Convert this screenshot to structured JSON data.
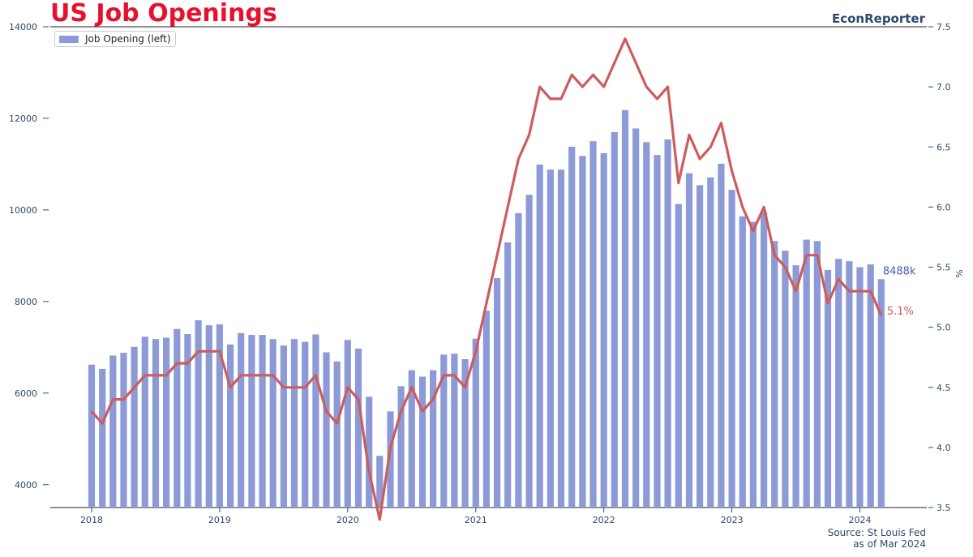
{
  "header": {
    "title": "US Job Openings",
    "brand": "EconReporter"
  },
  "legend": {
    "label": "Job Opening (left)"
  },
  "footer": {
    "source": "Source: St Louis Fed",
    "asof": "as of Mar 2024"
  },
  "annotations": {
    "bar_end": "8488k",
    "line_end": "5.1%"
  },
  "chart_data": {
    "type": "bar",
    "start": "2018-01",
    "frequency": "monthly",
    "x_ticks": [
      "2018",
      "2019",
      "2020",
      "2021",
      "2022",
      "2023",
      "2024"
    ],
    "ylim": [
      3500,
      14000
    ],
    "yticks": [
      4000,
      6000,
      8000,
      10000,
      12000,
      14000
    ],
    "y2lim": [
      3.5,
      7.5
    ],
    "y2ticks": [
      "3.5",
      "4.0",
      "4.5",
      "5.0",
      "5.5",
      "6.0",
      "6.5",
      "7.0",
      "7.5"
    ],
    "y2label": "%",
    "bar_color": "#8c9ad7",
    "line_color": "#cd5c5c",
    "series": [
      {
        "name": "Job Opening (left)",
        "type": "bar",
        "axis": "left",
        "values": [
          6620,
          6530,
          6820,
          6880,
          7010,
          7230,
          7180,
          7210,
          7400,
          7290,
          7590,
          7480,
          7500,
          7060,
          7310,
          7270,
          7270,
          7180,
          7040,
          7180,
          7120,
          7280,
          6890,
          6690,
          7160,
          6970,
          5920,
          4630,
          5600,
          6150,
          6500,
          6360,
          6500,
          6840,
          6860,
          6740,
          7190,
          7800,
          8510,
          9290,
          9930,
          10330,
          10990,
          10880,
          10880,
          11380,
          11180,
          11500,
          11240,
          11700,
          12180,
          11780,
          11480,
          11200,
          11540,
          10130,
          10800,
          10540,
          10710,
          11010,
          10440,
          9860,
          9740,
          9950,
          9320,
          9110,
          8790,
          9350,
          9320,
          8690,
          8930,
          8880,
          8750,
          8810,
          8488
        ]
      },
      {
        "type": "line",
        "axis": "right",
        "values": [
          4.3,
          4.2,
          4.4,
          4.4,
          4.5,
          4.6,
          4.6,
          4.6,
          4.7,
          4.7,
          4.8,
          4.8,
          4.8,
          4.5,
          4.6,
          4.6,
          4.6,
          4.6,
          4.5,
          4.5,
          4.5,
          4.6,
          4.3,
          4.2,
          4.5,
          4.4,
          3.8,
          3.4,
          4.0,
          4.3,
          4.5,
          4.3,
          4.4,
          4.6,
          4.6,
          4.5,
          4.8,
          5.2,
          5.6,
          6.0,
          6.4,
          6.6,
          7.0,
          6.9,
          6.9,
          7.1,
          7.0,
          7.1,
          7.0,
          7.2,
          7.4,
          7.2,
          7.0,
          6.9,
          7.0,
          6.2,
          6.6,
          6.4,
          6.5,
          6.7,
          6.3,
          6.0,
          5.8,
          6.0,
          5.6,
          5.5,
          5.3,
          5.6,
          5.6,
          5.2,
          5.4,
          5.3,
          5.3,
          5.3,
          5.1
        ]
      }
    ]
  }
}
